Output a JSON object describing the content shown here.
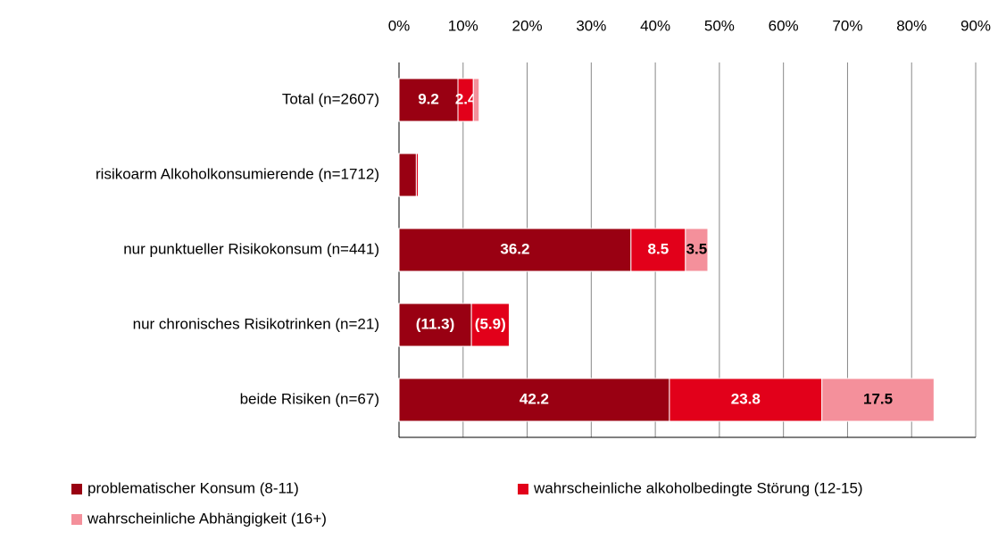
{
  "chart_data": {
    "type": "bar",
    "orientation": "horizontal",
    "stacked": true,
    "categories": [
      "Total (n=2607)",
      "risikoarm Alkoholkonsumierende (n=1712)",
      "nur punktueller Risikokonsum (n=441)",
      "nur chronisches Risikotrinken (n=21)",
      "beide Risiken (n=67)"
    ],
    "series": [
      {
        "name": "problematischer Konsum (8-11)",
        "color": "#990012",
        "values": [
          9.2,
          2.7,
          36.2,
          11.3,
          42.2
        ],
        "value_labels": [
          "9.2",
          null,
          "36.2",
          "(11.3)",
          "42.2"
        ]
      },
      {
        "name": "wahrscheinliche alkoholbedingte Störung (12-15)",
        "color": "#e2001a",
        "values": [
          2.4,
          0.3,
          8.5,
          5.9,
          23.8
        ],
        "value_labels": [
          "2.4",
          null,
          "8.5",
          "(5.9)",
          "23.8"
        ]
      },
      {
        "name": "wahrscheinliche Abhängigkeit (16+)",
        "color": "#f4909b",
        "values": [
          0.9,
          null,
          3.5,
          null,
          17.5
        ],
        "value_labels": [
          null,
          null,
          "3.5",
          null,
          "17.5"
        ]
      }
    ],
    "xlim": [
      0,
      90
    ],
    "xticks": [
      {
        "value": 0,
        "label": "0%"
      },
      {
        "value": 10,
        "label": "10%"
      },
      {
        "value": 20,
        "label": "20%"
      },
      {
        "value": 30,
        "label": "30%"
      },
      {
        "value": 40,
        "label": "40%"
      },
      {
        "value": 50,
        "label": "50%"
      },
      {
        "value": 60,
        "label": "60%"
      },
      {
        "value": 70,
        "label": "70%"
      },
      {
        "value": 80,
        "label": "80%"
      },
      {
        "value": 90,
        "label": "90%"
      }
    ],
    "grid": true,
    "legend": "bottom"
  }
}
